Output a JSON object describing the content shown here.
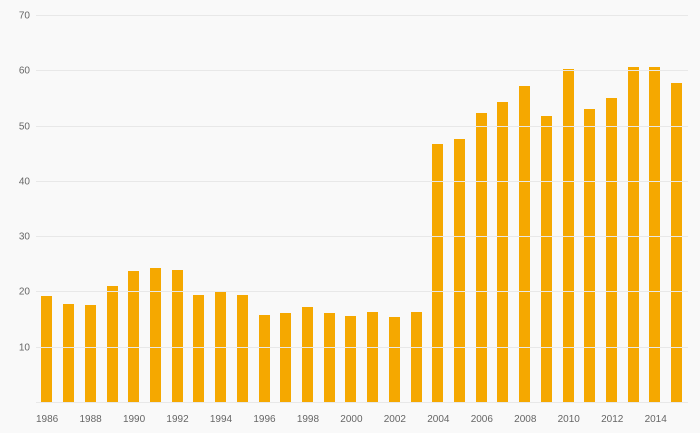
{
  "chart_data": {
    "type": "bar",
    "title": "",
    "xlabel": "",
    "ylabel": "",
    "categories": [
      "1986",
      "1987",
      "1988",
      "1989",
      "1990",
      "1991",
      "1992",
      "1993",
      "1994",
      "1995",
      "1996",
      "1997",
      "1998",
      "1999",
      "2000",
      "2001",
      "2002",
      "2003",
      "2004",
      "2005",
      "2006",
      "2007",
      "2008",
      "2009",
      "2010",
      "2011",
      "2012",
      "2013",
      "2014",
      "2015"
    ],
    "values": [
      19.3,
      17.9,
      17.8,
      21.1,
      23.9,
      24.4,
      24.1,
      19.6,
      20.3,
      19.6,
      16.0,
      16.3,
      17.4,
      16.2,
      15.8,
      16.4,
      15.5,
      16.4,
      46.8,
      47.7,
      52.4,
      54.5,
      57.4,
      51.9,
      60.5,
      53.1,
      55.2,
      60.8,
      60.8,
      57.8
    ],
    "ylim": [
      0,
      70
    ],
    "yticks": [
      0,
      10,
      20,
      30,
      40,
      50,
      60,
      70
    ],
    "ytick_labels_visible": [
      "10",
      "20",
      "30",
      "40",
      "50",
      "60",
      "70"
    ],
    "xtick_labels": [
      "1986",
      "1988",
      "1990",
      "1992",
      "1994",
      "1996",
      "1998",
      "2000",
      "2002",
      "2004",
      "2006",
      "2008",
      "2010",
      "2012",
      "2014"
    ],
    "legend": "none",
    "grid": true,
    "colors": {
      "bar": "#f5a800",
      "background": "#f9f9f9",
      "gridline": "#e8e8e8",
      "tick_label": "#666666"
    }
  }
}
